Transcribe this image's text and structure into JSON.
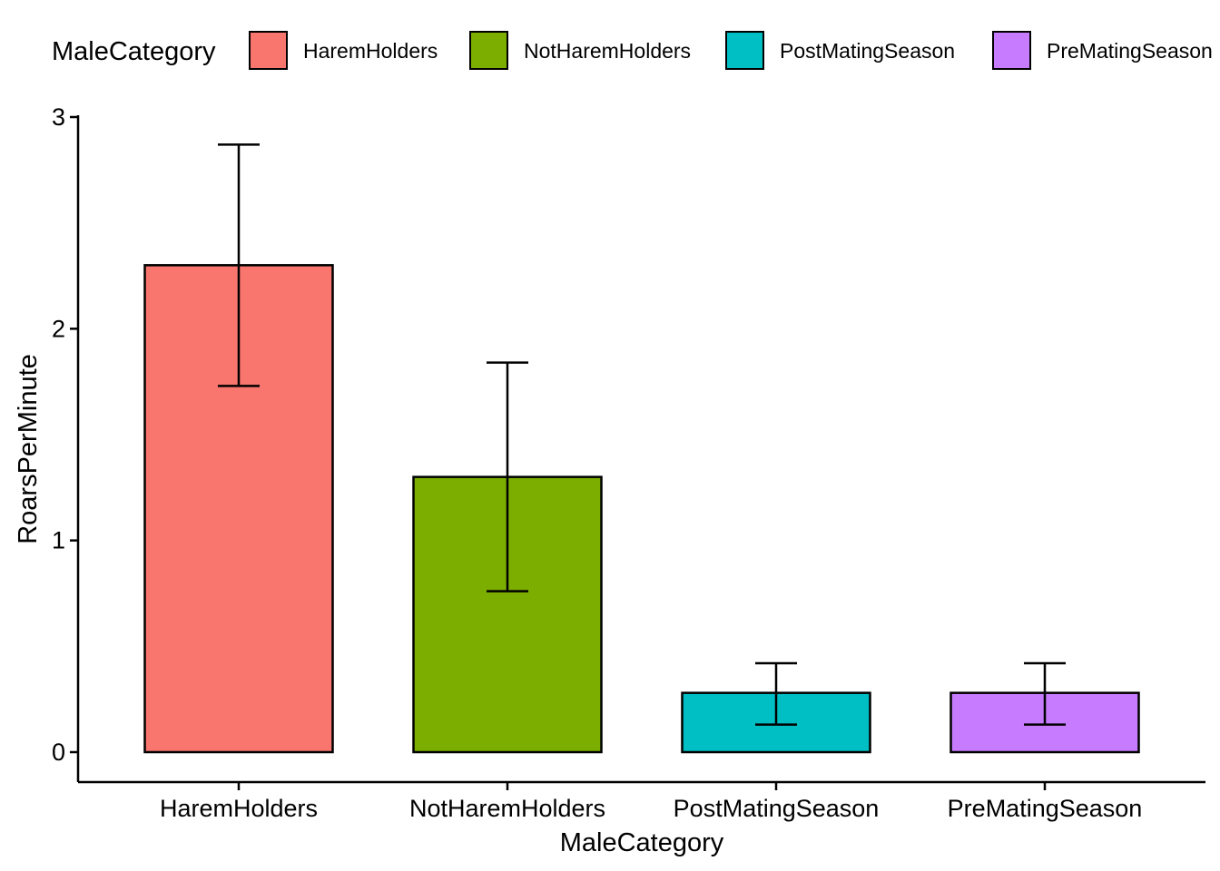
{
  "chart_data": {
    "type": "bar",
    "title": "",
    "xlabel": "MaleCategory",
    "ylabel": "RoarsPerMinute",
    "ylim": [
      0,
      3
    ],
    "yticks": [
      0,
      1,
      2,
      3
    ],
    "categories": [
      "HaremHolders",
      "NotHaremHolders",
      "PostMatingSeason",
      "PreMatingSeason"
    ],
    "values": [
      2.3,
      1.3,
      0.28,
      0.28
    ],
    "error_low": [
      1.73,
      0.76,
      0.13,
      0.13
    ],
    "error_high": [
      2.87,
      1.84,
      0.42,
      0.42
    ],
    "colors": [
      "#F8766D",
      "#7CAE00",
      "#00BFC4",
      "#C77CFF"
    ],
    "grid": false,
    "legend": {
      "title": "MaleCategory",
      "placement": "top",
      "entries": [
        "HaremHolders",
        "NotHaremHolders",
        "PostMatingSeason",
        "PreMatingSeason"
      ]
    }
  }
}
